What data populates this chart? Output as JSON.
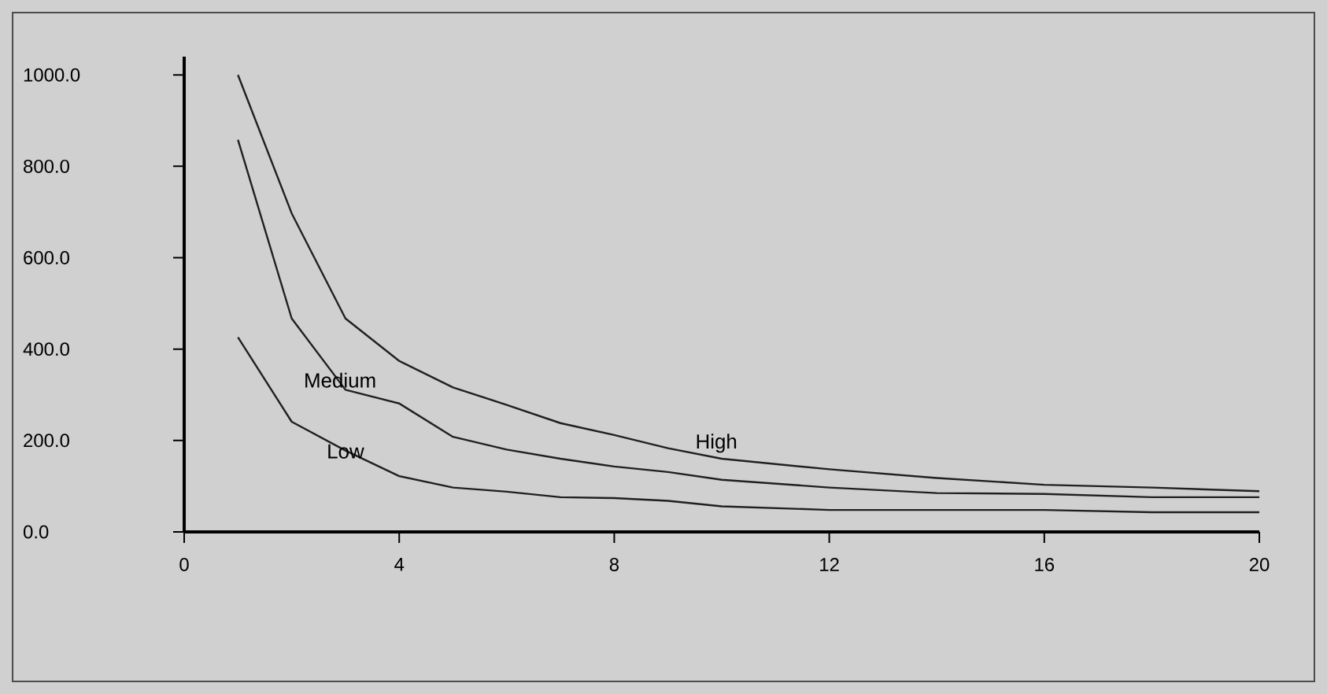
{
  "chart_data": {
    "type": "line",
    "x": [
      1,
      2,
      3,
      4,
      5,
      6,
      7,
      8,
      9,
      10,
      12,
      14,
      16,
      18,
      20
    ],
    "series": [
      {
        "name": "High",
        "color": "#202020",
        "values": [
          1000,
          697,
          467,
          374,
          316,
          278,
          238,
          212,
          183,
          160,
          137,
          118,
          103,
          97,
          89
        ]
      },
      {
        "name": "Medium",
        "color": "#202020",
        "values": [
          858,
          467,
          311,
          281,
          208,
          180,
          160,
          143,
          131,
          114,
          97,
          85,
          83,
          76,
          76
        ]
      },
      {
        "name": "Low",
        "color": "#202020",
        "values": [
          426,
          241,
          178,
          122,
          97,
          88,
          76,
          74,
          68,
          56,
          48,
          48,
          48,
          43,
          43
        ]
      }
    ],
    "xlim": [
      0,
      20
    ],
    "ylim": [
      0,
      1040
    ],
    "xticks": [
      0,
      4,
      8,
      12,
      16,
      20
    ],
    "yticks": [
      {
        "value": 0,
        "label": "0.0"
      },
      {
        "value": 200,
        "label": "200.0"
      },
      {
        "value": 400,
        "label": "400.0"
      },
      {
        "value": 600,
        "label": "600.0"
      },
      {
        "value": 800,
        "label": "800.0"
      },
      {
        "value": 1000,
        "label": "1000.0"
      }
    ],
    "grid": false,
    "legend": false,
    "marker": "none",
    "line_style": "solid"
  }
}
